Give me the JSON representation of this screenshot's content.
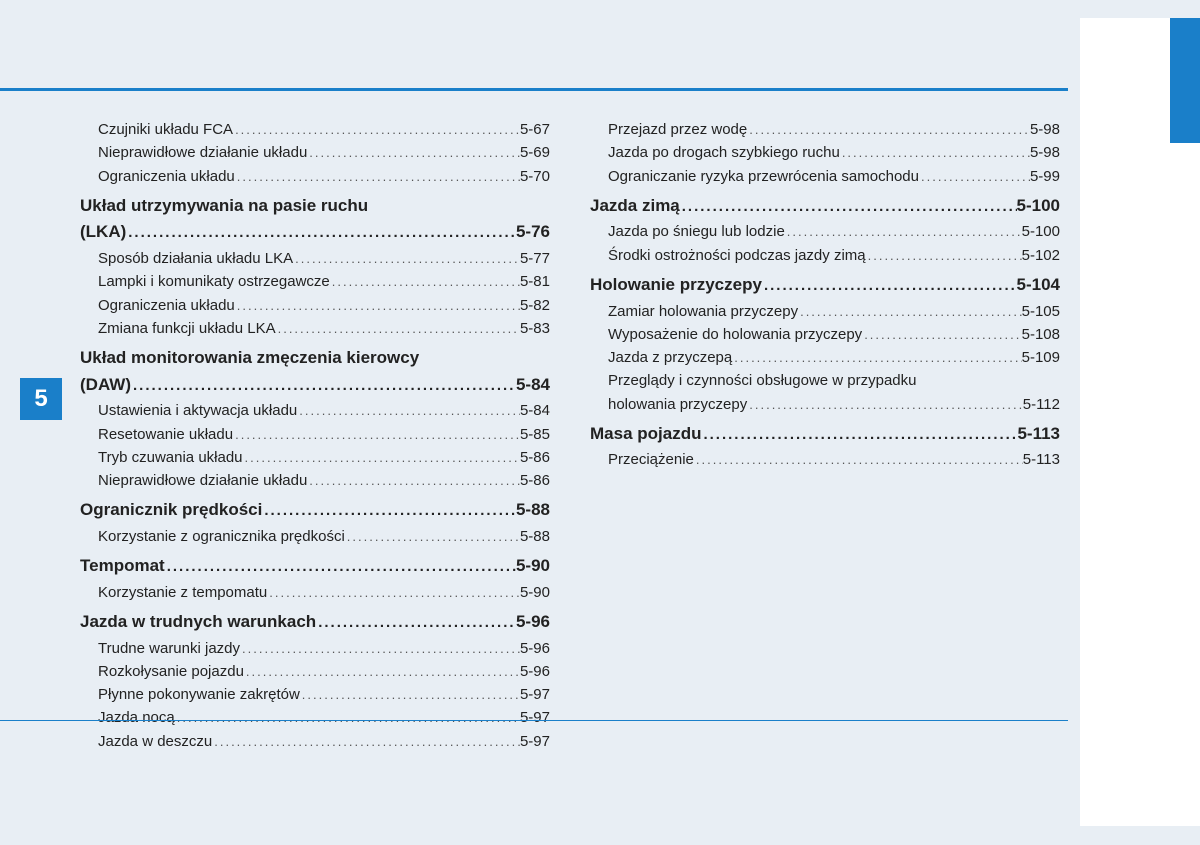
{
  "chapter_number": "5",
  "colors": {
    "accent": "#1a7fc9",
    "background": "#e8eef4",
    "sidebar_bg": "#ffffff",
    "text": "#222222"
  },
  "leader_dots": "...........................................................................................................................",
  "left_column": [
    {
      "type": "sub",
      "label": "Czujniki układu FCA",
      "page": "5-67"
    },
    {
      "type": "sub",
      "label": "Nieprawidłowe działanie układu",
      "page": "5-69"
    },
    {
      "type": "sub",
      "label": "Ograniczenia układu",
      "page": "5-70"
    },
    {
      "type": "section",
      "label": "Układ utrzymywania na pasie ruchu (LKA) ",
      "page": "5-76",
      "wrap": true
    },
    {
      "type": "sub",
      "label": "Sposób działania układu LKA",
      "page": "5-77"
    },
    {
      "type": "sub",
      "label": "Lampki i komunikaty ostrzegawcze",
      "page": "5-81"
    },
    {
      "type": "sub",
      "label": "Ograniczenia układu",
      "page": "5-82"
    },
    {
      "type": "sub",
      "label": "Zmiana funkcji układu LKA ",
      "page": "5-83"
    },
    {
      "type": "section",
      "label": "Układ monitorowania zmęczenia kierowcy (DAW) ",
      "page": "5-84",
      "wrap": true
    },
    {
      "type": "sub",
      "label": "Ustawienia i aktywacja układu",
      "page": "5-84"
    },
    {
      "type": "sub",
      "label": "Resetowanie układu ",
      "page": "5-85"
    },
    {
      "type": "sub",
      "label": "Tryb czuwania układu",
      "page": "5-86"
    },
    {
      "type": "sub",
      "label": "Nieprawidłowe działanie układu",
      "page": "5-86"
    },
    {
      "type": "section",
      "label": "Ogranicznik prędkości ",
      "page": "5-88"
    },
    {
      "type": "sub",
      "label": "Korzystanie z ogranicznika prędkości",
      "page": "5-88"
    },
    {
      "type": "section",
      "label": "Tempomat ",
      "page": "5-90"
    },
    {
      "type": "sub",
      "label": "Korzystanie z tempomatu",
      "page": "5-90"
    },
    {
      "type": "section",
      "label": "Jazda w trudnych warunkach",
      "page": "5-96"
    },
    {
      "type": "sub",
      "label": "Trudne warunki jazdy",
      "page": "5-96"
    },
    {
      "type": "sub",
      "label": "Rozkołysanie pojazdu",
      "page": "5-96"
    },
    {
      "type": "sub",
      "label": "Płynne pokonywanie zakrętów",
      "page": "5-97"
    },
    {
      "type": "sub",
      "label": "Jazda nocą",
      "page": "5-97"
    },
    {
      "type": "sub",
      "label": "Jazda w deszczu",
      "page": "5-97"
    }
  ],
  "right_column": [
    {
      "type": "sub",
      "label": "Przejazd przez wodę",
      "page": "5-98"
    },
    {
      "type": "sub",
      "label": "Jazda po drogach szybkiego ruchu",
      "page": "5-98"
    },
    {
      "type": "sub",
      "label": "Ograniczanie ryzyka przewrócenia samochodu",
      "page": "5-99"
    },
    {
      "type": "section",
      "label": "Jazda zimą ",
      "page": "5-100"
    },
    {
      "type": "sub",
      "label": "Jazda po śniegu lub lodzie",
      "page": "5-100"
    },
    {
      "type": "sub",
      "label": "Środki ostrożności podczas jazdy zimą",
      "page": "5-102"
    },
    {
      "type": "section",
      "label": "Holowanie przyczepy",
      "page": "5-104"
    },
    {
      "type": "sub",
      "label": "Zamiar holowania przyczepy",
      "page": "5-105"
    },
    {
      "type": "sub",
      "label": "Wyposażenie do holowania przyczepy",
      "page": "5-108"
    },
    {
      "type": "sub",
      "label": "Jazda z przyczepą",
      "page": "5-109"
    },
    {
      "type": "sub",
      "label": "Przeglądy i czynności obsługowe w przypadku holowania przyczepy",
      "page": "5-112",
      "wrap": true
    },
    {
      "type": "section",
      "label": "Masa pojazdu",
      "page": "5-113"
    },
    {
      "type": "sub",
      "label": "Przeciążenie",
      "page": "5-113"
    }
  ]
}
